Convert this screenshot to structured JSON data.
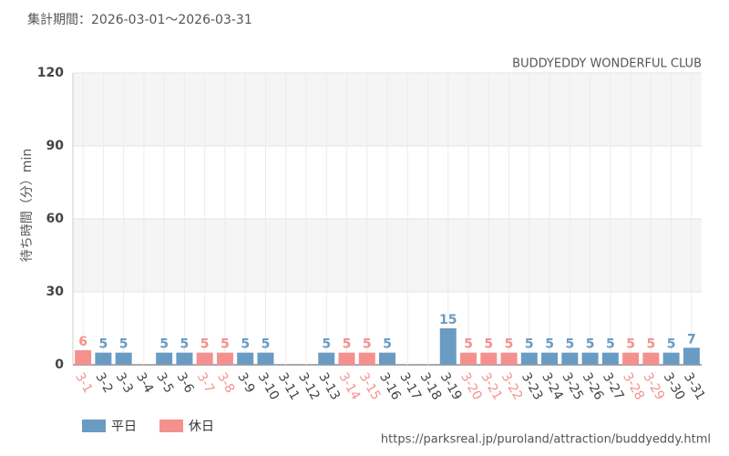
{
  "chart_data": {
    "type": "bar",
    "title": "集計期間：2026-03-01～2026-03-31",
    "subtitle": "BUDDYEDDY WONDERFUL CLUB",
    "y_label": "待ち時間（分）min",
    "source": "https://parksreal.jp/puroland/attraction/buddyeddy.html",
    "categories": [
      "3-1",
      "3-2",
      "3-3",
      "3-4",
      "3-5",
      "3-6",
      "3-7",
      "3-8",
      "3-9",
      "3-10",
      "3-11",
      "3-12",
      "3-13",
      "3-14",
      "3-15",
      "3-16",
      "3-17",
      "3-18",
      "3-19",
      "3-20",
      "3-21",
      "3-22",
      "3-23",
      "3-24",
      "3-25",
      "3-26",
      "3-27",
      "3-28",
      "3-29",
      "3-30",
      "3-31"
    ],
    "series": [
      {
        "name": "平日",
        "color": "#6a9bc3",
        "values": [
          null,
          5,
          5,
          null,
          5,
          5,
          null,
          null,
          5,
          5,
          null,
          null,
          5,
          null,
          null,
          5,
          null,
          null,
          15,
          null,
          null,
          null,
          5,
          5,
          5,
          5,
          5,
          null,
          null,
          5,
          7
        ]
      },
      {
        "name": "休日",
        "color": "#f4918f",
        "values": [
          6,
          null,
          null,
          null,
          null,
          null,
          5,
          5,
          null,
          null,
          null,
          null,
          null,
          5,
          5,
          null,
          null,
          null,
          null,
          5,
          5,
          5,
          null,
          null,
          null,
          null,
          null,
          5,
          5,
          null,
          null
        ]
      }
    ],
    "ylim": [
      0,
      120
    ],
    "yticks": [
      0,
      30,
      60,
      90,
      120
    ],
    "grid": true
  }
}
